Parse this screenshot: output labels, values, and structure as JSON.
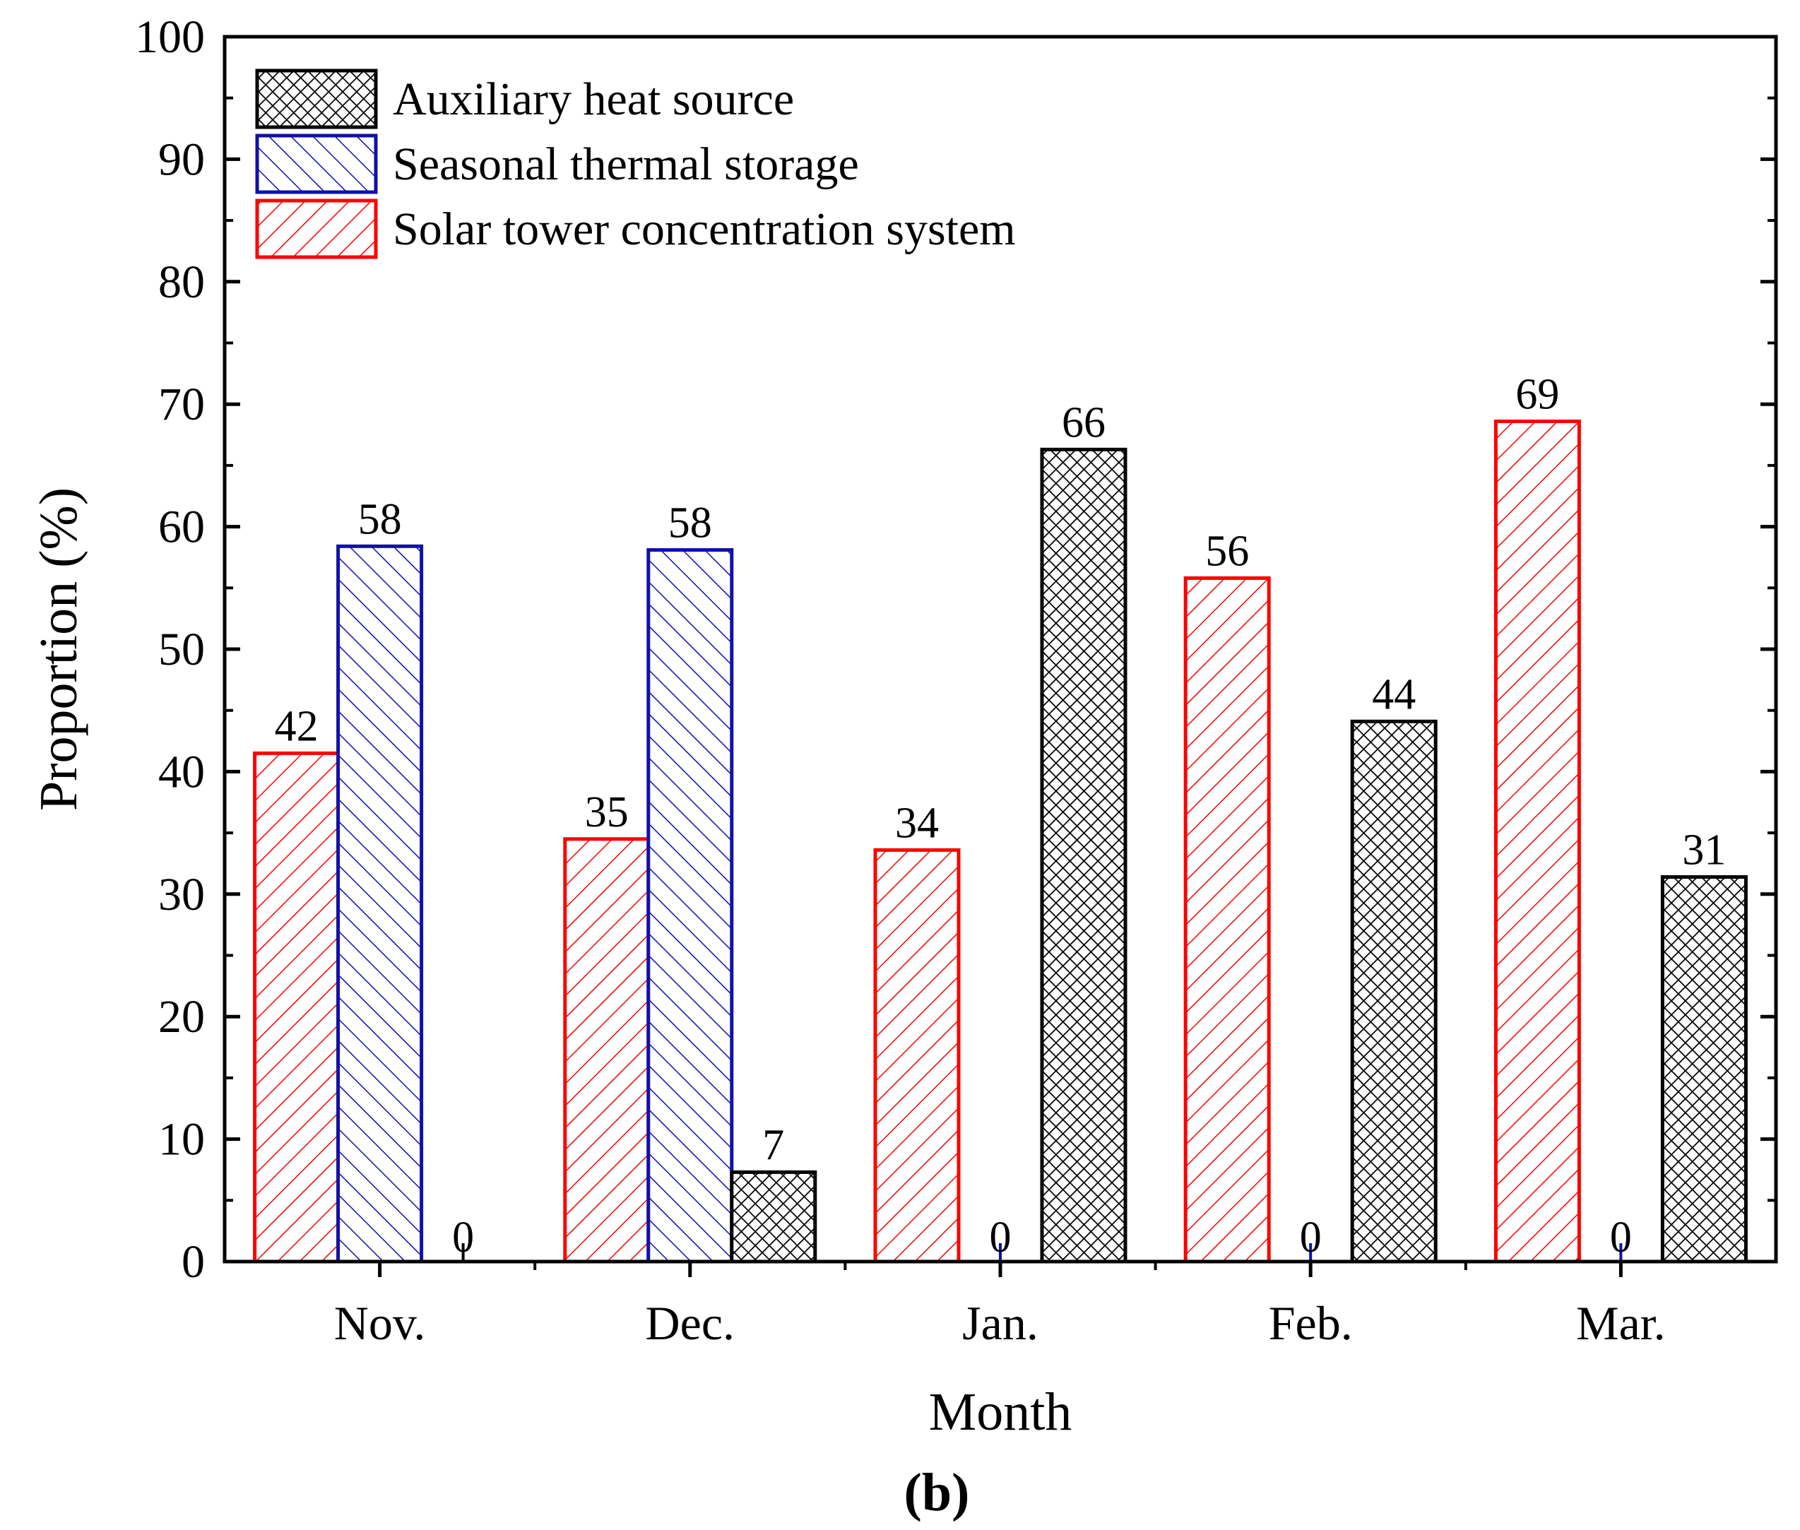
{
  "chart_data": {
    "type": "bar",
    "panel_label": "(b)",
    "xlabel": "Month",
    "ylabel": "Proportion (%)",
    "ylim": [
      0,
      100
    ],
    "yticks": [
      0,
      10,
      20,
      30,
      40,
      50,
      60,
      70,
      80,
      90,
      100
    ],
    "categories": [
      "Nov.",
      "Dec.",
      "Jan.",
      "Feb.",
      "Mar."
    ],
    "grid": false,
    "legend_position": "top-left",
    "series": [
      {
        "name": "Solar tower concentration system",
        "color": "#ff0000",
        "pattern": "forward-diagonal",
        "values": [
          41.5,
          34.5,
          33.6,
          55.8,
          68.6
        ],
        "labels": [
          "42",
          "35",
          "34",
          "56",
          "69"
        ]
      },
      {
        "name": "Seasonal thermal storage",
        "color": "#1010a8",
        "pattern": "back-diagonal",
        "values": [
          58.4,
          58.1,
          0,
          0,
          0
        ],
        "labels": [
          "58",
          "58",
          "0",
          "0",
          "0"
        ]
      },
      {
        "name": "Auxiliary heat source",
        "color": "#000000",
        "pattern": "crosshatch",
        "values": [
          0,
          7.3,
          66.3,
          44.1,
          31.4
        ],
        "labels": [
          "0",
          "7",
          "66",
          "44",
          "31"
        ]
      }
    ],
    "legend_order": [
      "Auxiliary heat source",
      "Seasonal thermal storage",
      "Solar tower concentration system"
    ]
  }
}
